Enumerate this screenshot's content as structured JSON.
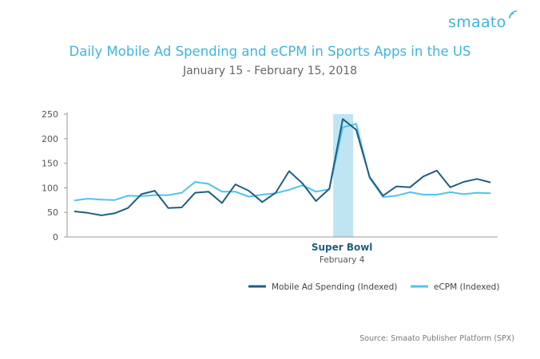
{
  "brand": {
    "name": "smaato",
    "accent": "#3fb4df"
  },
  "source": "Source: Smaato Publisher Platform (SPX)",
  "chart_data": {
    "type": "line",
    "title": "Daily Mobile Ad Spending and eCPM in Sports Apps in the US",
    "subtitle": "January 15 - February 15, 2018",
    "xlabel": "",
    "ylabel": "",
    "ylim": [
      0,
      250
    ],
    "yticks": [
      0,
      50,
      100,
      150,
      200,
      250
    ],
    "grid": false,
    "legend_position": "bottom-right",
    "x": [
      1,
      2,
      3,
      4,
      5,
      6,
      7,
      8,
      9,
      10,
      11,
      12,
      13,
      14,
      15,
      16,
      17,
      18,
      19,
      20,
      21,
      22,
      23,
      24,
      25,
      26,
      27,
      28,
      29,
      30,
      31,
      32
    ],
    "series": [
      {
        "name": "Mobile Ad Spending (Indexed)",
        "color": "#1f5f80",
        "values": [
          52,
          49,
          44,
          48,
          59,
          87,
          94,
          59,
          60,
          90,
          92,
          69,
          107,
          94,
          71,
          90,
          134,
          109,
          73,
          98,
          240,
          218,
          122,
          84,
          103,
          101,
          123,
          135,
          101,
          112,
          118,
          111
        ]
      },
      {
        "name": "eCPM (Indexed)",
        "color": "#4fc3ec",
        "values": [
          74,
          78,
          76,
          75,
          84,
          83,
          85,
          85,
          90,
          112,
          108,
          92,
          92,
          82,
          86,
          89,
          96,
          105,
          92,
          97,
          223,
          230,
          120,
          81,
          84,
          91,
          86,
          86,
          91,
          87,
          90,
          89
        ]
      }
    ],
    "highlight": {
      "x": 21,
      "color": "#bfe5f3"
    },
    "annotation": {
      "title": "Super Bowl",
      "subtitle": "February 4",
      "x": 21
    }
  }
}
